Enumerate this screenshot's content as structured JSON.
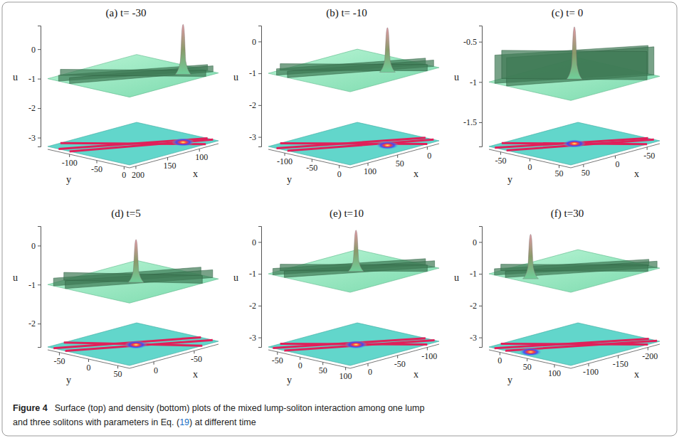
{
  "chart_data": [
    {
      "type": "surface",
      "title": "(a) t= -30",
      "x_label": "x",
      "y_label": "y",
      "z_label": "u",
      "xlim": [
        70,
        210
      ],
      "xticks": [
        200,
        150,
        100
      ],
      "ylim": [
        -140,
        10
      ],
      "yticks": [
        -100,
        -50,
        0
      ],
      "zlim": [
        -3.3,
        0.8
      ],
      "zticks": [
        0,
        -1,
        -2,
        -3
      ],
      "background": -1,
      "soliton_u": -0.8,
      "solitons": [
        {
          "from": [
            210,
            -120
          ],
          "to": [
            70,
            -10
          ]
        },
        {
          "from": [
            210,
            -100
          ],
          "to": [
            70,
            0
          ]
        },
        {
          "from": [
            190,
            -140
          ],
          "to": [
            90,
            10
          ]
        }
      ],
      "lump": {
        "x": 100,
        "y": -20,
        "peak": 0.7
      }
    },
    {
      "type": "surface",
      "title": "(b) t= -10",
      "x_label": "x",
      "y_label": "y",
      "z_label": "u",
      "xlim": [
        -20,
        130
      ],
      "xticks": [
        100,
        50,
        0
      ],
      "ylim": [
        -130,
        20
      ],
      "yticks": [
        -100,
        -50,
        0
      ],
      "zlim": [
        -3.3,
        0.5
      ],
      "zticks": [
        0,
        -1,
        -2,
        -3
      ],
      "background": -1,
      "soliton_u": -0.8,
      "solitons": [
        {
          "from": [
            130,
            -115
          ],
          "to": [
            -20,
            -5
          ]
        },
        {
          "from": [
            130,
            -95
          ],
          "to": [
            -20,
            10
          ]
        },
        {
          "from": [
            110,
            -130
          ],
          "to": [
            0,
            20
          ]
        }
      ],
      "lump": {
        "x": 35,
        "y": -15,
        "peak": 0.4
      }
    },
    {
      "type": "surface",
      "title": "(c) t= 0",
      "x_label": "x",
      "y_label": "y",
      "z_label": "u",
      "xlim": [
        -70,
        70
      ],
      "xticks": [
        50,
        0,
        -50
      ],
      "ylim": [
        -70,
        70
      ],
      "yticks": [
        -50,
        0,
        50
      ],
      "zlim": [
        -1.8,
        -0.3
      ],
      "zticks": [
        -0.5,
        -1,
        -1.5
      ],
      "background": -1,
      "soliton_u": -0.65,
      "solitons": [
        {
          "from": [
            70,
            -60
          ],
          "to": [
            -70,
            50
          ]
        },
        {
          "from": [
            70,
            -40
          ],
          "to": [
            -70,
            60
          ]
        },
        {
          "from": [
            50,
            -70
          ],
          "to": [
            -50,
            70
          ]
        }
      ],
      "lump": {
        "x": 0,
        "y": 0,
        "peak": -0.35
      }
    },
    {
      "type": "surface",
      "title": "(d) t=5",
      "x_label": "x",
      "y_label": "y",
      "z_label": "u",
      "xlim": [
        -80,
        30
      ],
      "xticks": [
        0,
        -50
      ],
      "ylim": [
        -70,
        70
      ],
      "yticks": [
        -50,
        0,
        50
      ],
      "zlim": [
        -2.6,
        0.5
      ],
      "zticks": [
        0,
        -1,
        -2
      ],
      "background": -1,
      "soliton_u": -0.8,
      "solitons": [
        {
          "from": [
            30,
            -60
          ],
          "to": [
            -80,
            40
          ]
        },
        {
          "from": [
            30,
            -40
          ],
          "to": [
            -80,
            60
          ]
        },
        {
          "from": [
            10,
            -70
          ],
          "to": [
            -60,
            70
          ]
        }
      ],
      "lump": {
        "x": -25,
        "y": 5,
        "peak": 0.1
      }
    },
    {
      "type": "surface",
      "title": "(e) t=10",
      "x_label": "x",
      "y_label": "y",
      "z_label": "u",
      "xlim": [
        -120,
        30
      ],
      "xticks": [
        0,
        -50,
        -100
      ],
      "ylim": [
        -70,
        110
      ],
      "yticks": [
        -50,
        0,
        50,
        100
      ],
      "zlim": [
        -3.3,
        0.5
      ],
      "zticks": [
        0,
        -1,
        -2,
        -3
      ],
      "background": -1,
      "soliton_u": -0.8,
      "solitons": [
        {
          "from": [
            30,
            -60
          ],
          "to": [
            -120,
            80
          ]
        },
        {
          "from": [
            30,
            -35
          ],
          "to": [
            -120,
            100
          ]
        },
        {
          "from": [
            10,
            -70
          ],
          "to": [
            -100,
            110
          ]
        }
      ],
      "lump": {
        "x": -45,
        "y": 25,
        "peak": 0.3
      }
    },
    {
      "type": "surface",
      "title": "(f) t=30",
      "x_label": "x",
      "y_label": "y",
      "z_label": "u",
      "xlim": [
        -220,
        -70
      ],
      "xticks": [
        -100,
        -150,
        -200
      ],
      "ylim": [
        -20,
        130
      ],
      "yticks": [
        0,
        50,
        100
      ],
      "zlim": [
        -3.3,
        0.5
      ],
      "zticks": [
        0,
        -1,
        -2,
        -3
      ],
      "background": -1,
      "soliton_u": -0.8,
      "solitons": [
        {
          "from": [
            -70,
            -10
          ],
          "to": [
            -220,
            110
          ]
        },
        {
          "from": [
            -70,
            10
          ],
          "to": [
            -220,
            125
          ]
        },
        {
          "from": [
            -90,
            -20
          ],
          "to": [
            -200,
            130
          ]
        }
      ],
      "lump": {
        "x": -85,
        "y": 40,
        "peak": 0.4
      }
    }
  ],
  "caption": {
    "label": "Figure 4",
    "lines": [
      "Surface (top) and density (bottom) plots of the mixed lump-soliton interaction among one lump",
      "and three solitons with parameters in Eq. ("
    ],
    "ref": "19",
    "tail": ") at different time"
  }
}
